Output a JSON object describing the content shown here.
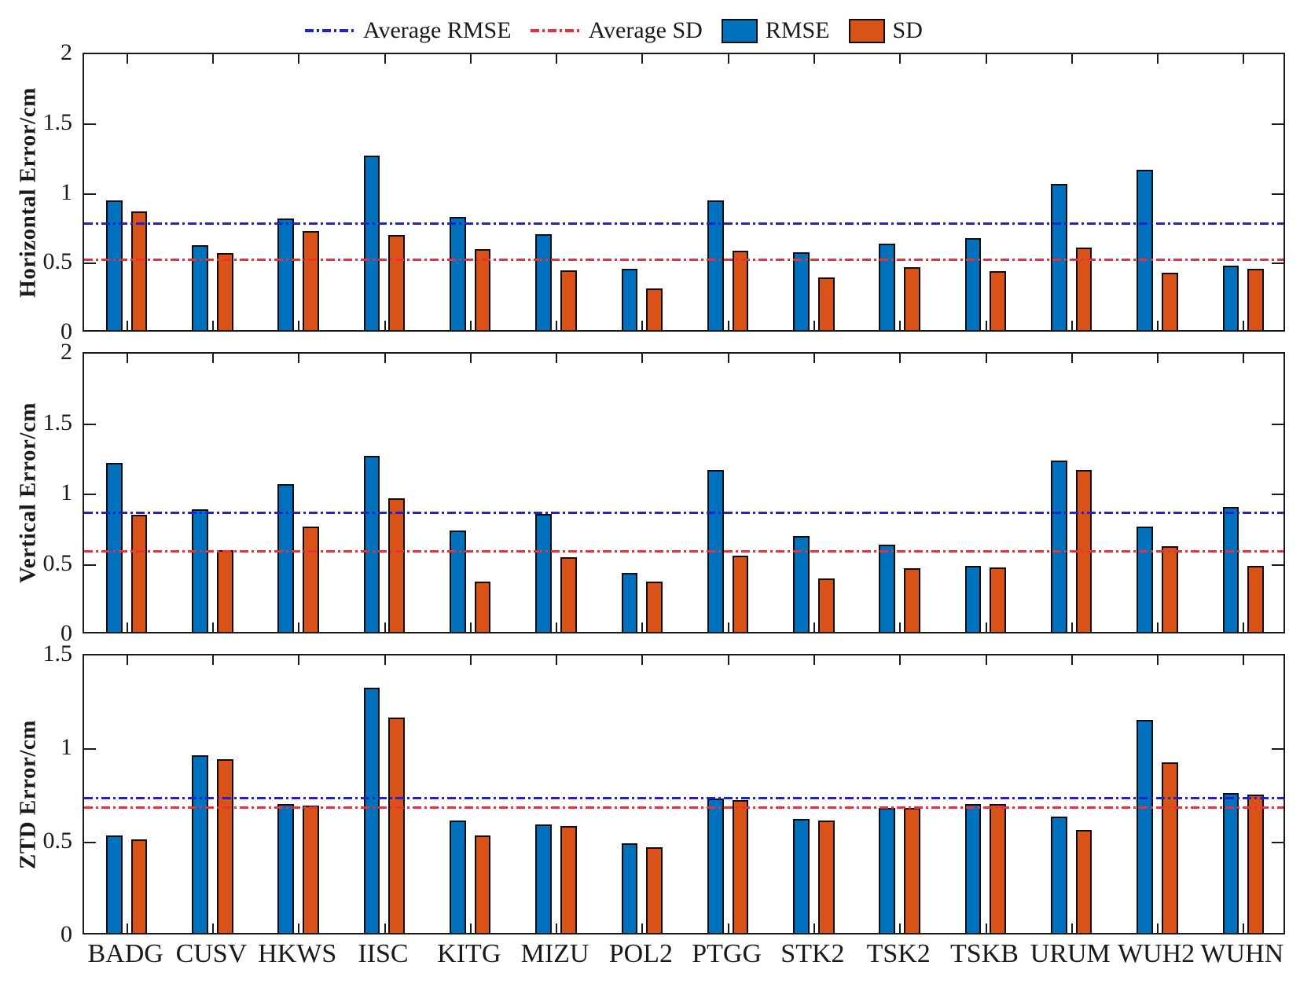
{
  "legend": {
    "avg_rmse_label": "Average RMSE",
    "avg_sd_label": "Average SD",
    "rmse_label": "RMSE",
    "sd_label": "SD"
  },
  "colors": {
    "rmse_bar": "#0072BD",
    "sd_bar": "#D95319",
    "avg_rmse_line": "#2222CC",
    "avg_sd_line": "#E8313B",
    "bar_outline": "#0d0d0d",
    "axis": "#1a1a1a"
  },
  "stations": [
    "BADG",
    "CUSV",
    "HKWS",
    "IISC",
    "KITG",
    "MIZU",
    "POL2",
    "PTGG",
    "STK2",
    "TSK2",
    "TSKB",
    "URUM",
    "WUH2",
    "WUHN"
  ],
  "chart_data": [
    {
      "type": "bar",
      "ylabel": "Horizontal Error/cm",
      "ylim": [
        0,
        2
      ],
      "yticks": [
        0,
        0.5,
        1,
        1.5,
        2
      ],
      "ytick_labels": [
        "0",
        "0.5",
        "1",
        "1.5",
        "2"
      ],
      "categories": [
        "BADG",
        "CUSV",
        "HKWS",
        "IISC",
        "KITG",
        "MIZU",
        "POL2",
        "PTGG",
        "STK2",
        "TSK2",
        "TSKB",
        "URUM",
        "WUH2",
        "WUHN"
      ],
      "series": [
        {
          "name": "RMSE",
          "values": [
            0.93,
            0.61,
            0.8,
            1.25,
            0.81,
            0.69,
            0.44,
            0.93,
            0.56,
            0.62,
            0.66,
            1.05,
            1.15,
            0.46
          ]
        },
        {
          "name": "SD",
          "values": [
            0.85,
            0.55,
            0.71,
            0.68,
            0.58,
            0.43,
            0.3,
            0.57,
            0.38,
            0.45,
            0.42,
            0.59,
            0.41,
            0.44
          ]
        }
      ],
      "average_rmse": 0.79,
      "average_sd": 0.53,
      "legend_position": "top",
      "grid": false
    },
    {
      "type": "bar",
      "ylabel": "Vertical Error/cm",
      "ylim": [
        0,
        2
      ],
      "yticks": [
        0,
        0.5,
        1,
        1.5,
        2
      ],
      "ytick_labels": [
        "0",
        "0.5",
        "1",
        "1.5",
        "2"
      ],
      "categories": [
        "BADG",
        "CUSV",
        "HKWS",
        "IISC",
        "KITG",
        "MIZU",
        "POL2",
        "PTGG",
        "STK2",
        "TSK2",
        "TSKB",
        "URUM",
        "WUH2",
        "WUHN"
      ],
      "series": [
        {
          "name": "RMSE",
          "values": [
            1.2,
            0.87,
            1.05,
            1.25,
            0.72,
            0.84,
            0.42,
            1.15,
            0.68,
            0.62,
            0.47,
            1.22,
            0.75,
            0.89
          ]
        },
        {
          "name": "SD",
          "values": [
            0.83,
            0.58,
            0.75,
            0.95,
            0.36,
            0.53,
            0.36,
            0.54,
            0.38,
            0.45,
            0.46,
            1.15,
            0.61,
            0.47
          ]
        }
      ],
      "average_rmse": 0.87,
      "average_sd": 0.6,
      "grid": false
    },
    {
      "type": "bar",
      "ylabel": "ZTD Error/cm",
      "ylim": [
        0,
        1.5
      ],
      "yticks": [
        0,
        0.5,
        1,
        1.5
      ],
      "ytick_labels": [
        "0",
        "0.5",
        "1",
        "1.5"
      ],
      "categories": [
        "BADG",
        "CUSV",
        "HKWS",
        "IISC",
        "KITG",
        "MIZU",
        "POL2",
        "PTGG",
        "STK2",
        "TSK2",
        "TSKB",
        "URUM",
        "WUH2",
        "WUHN"
      ],
      "series": [
        {
          "name": "RMSE",
          "values": [
            0.52,
            0.95,
            0.69,
            1.31,
            0.6,
            0.58,
            0.48,
            0.72,
            0.61,
            0.67,
            0.69,
            0.62,
            1.14,
            0.75
          ]
        },
        {
          "name": "SD",
          "values": [
            0.5,
            0.93,
            0.68,
            1.15,
            0.52,
            0.57,
            0.46,
            0.71,
            0.6,
            0.67,
            0.69,
            0.55,
            0.91,
            0.74
          ]
        }
      ],
      "average_rmse": 0.74,
      "average_sd": 0.69,
      "grid": false
    }
  ]
}
